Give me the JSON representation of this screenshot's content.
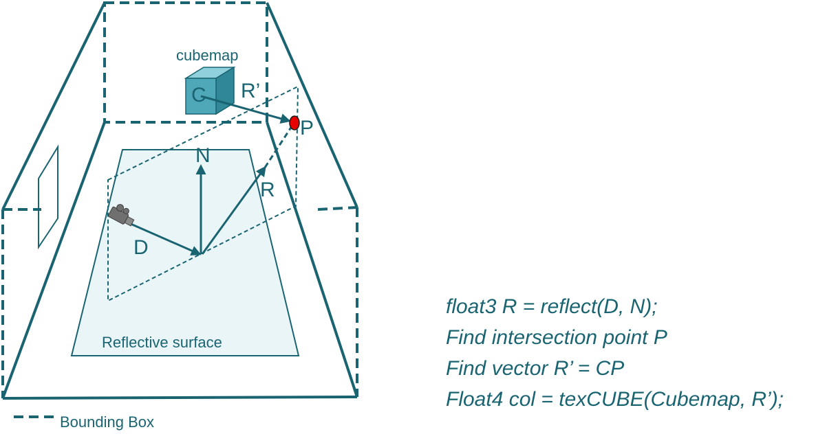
{
  "labels": {
    "cubemap": "cubemap",
    "c": "C",
    "r_prime": "R’",
    "p": "P",
    "n": "N",
    "r": "R",
    "d": "D",
    "surface": "Reflective surface",
    "legend": "Bounding Box"
  },
  "code_lines": [
    "float3 R = reflect(D, N);",
    "Find intersection point P",
    "Find vector R’ = CP",
    "Float4 col = texCUBE(Cubemap, R’);"
  ],
  "colors": {
    "line": "#1a6472",
    "surface_fill": "#eaf5f8",
    "cube_front": "#4fa8b8",
    "cube_top": "#8fd0dc",
    "cube_side": "#2f8797",
    "point_p": "#e60000",
    "camera": "#707070"
  },
  "icons": [
    "camera-icon"
  ]
}
